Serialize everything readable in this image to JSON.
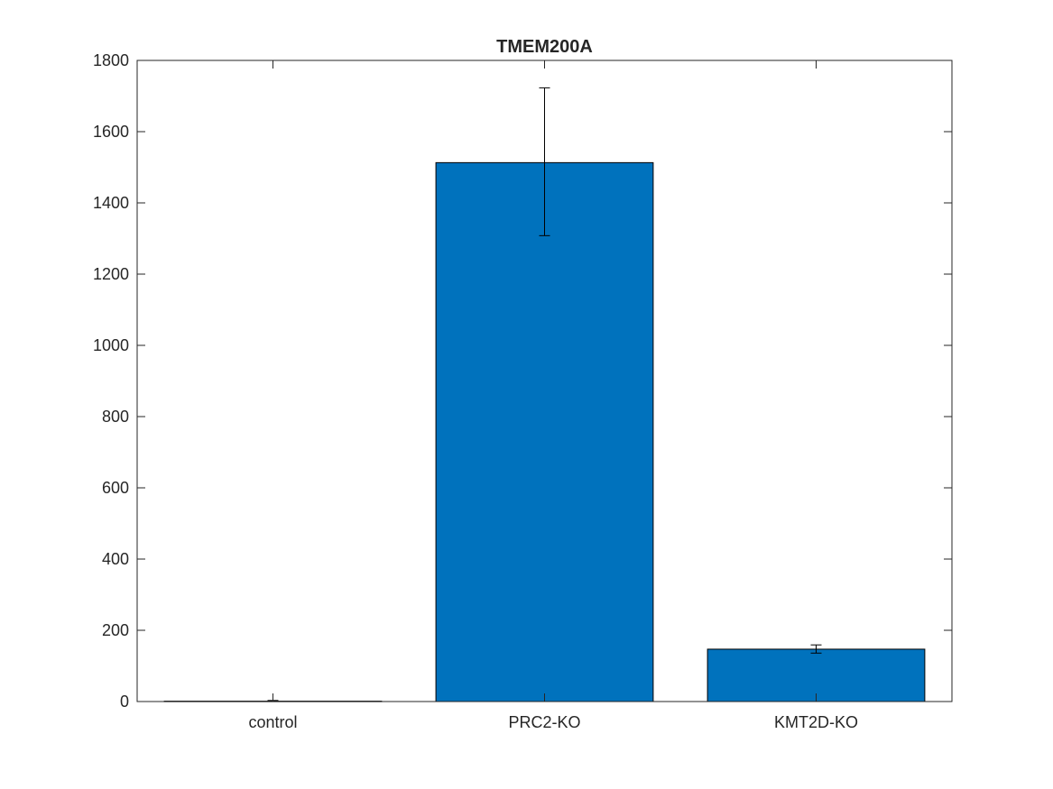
{
  "chart_data": {
    "type": "bar",
    "title": "TMEM200A",
    "xlabel": "",
    "ylabel": "",
    "categories": [
      "control",
      "PRC2-KO",
      "KMT2D-KO"
    ],
    "values": [
      1,
      1513,
      147
    ],
    "error_low": [
      1,
      1308,
      136
    ],
    "error_high": [
      3,
      1723,
      159
    ],
    "ylim": [
      0,
      1800
    ],
    "yticks": [
      0,
      200,
      400,
      600,
      800,
      1000,
      1200,
      1400,
      1600,
      1800
    ],
    "grid": false,
    "legend": "none",
    "bar_color": "#0072BD",
    "bar_edge_color": "#000000"
  }
}
